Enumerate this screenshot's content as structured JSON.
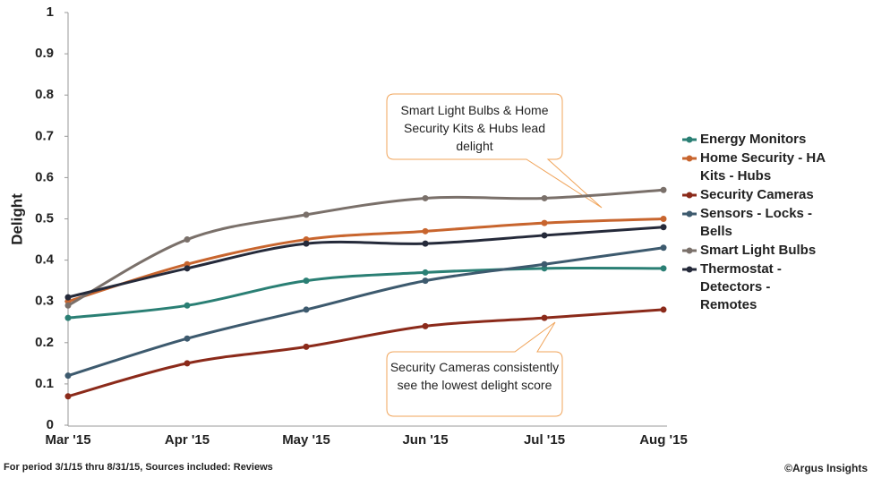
{
  "chart_data": {
    "type": "line",
    "y_label": "Delight",
    "categories": [
      "Mar '15",
      "Apr '15",
      "May '15",
      "Jun '15",
      "Jul '15",
      "Aug '15"
    ],
    "series": [
      {
        "name": "Energy Monitors",
        "color": "#2a7f74",
        "values": [
          0.26,
          0.29,
          0.35,
          0.37,
          0.38,
          0.38
        ]
      },
      {
        "name": "Home Security - HA Kits - Hubs",
        "color": "#c8652e",
        "values": [
          0.3,
          0.39,
          0.45,
          0.47,
          0.49,
          0.5
        ]
      },
      {
        "name": "Security Cameras",
        "color": "#8b2a1a",
        "values": [
          0.07,
          0.15,
          0.19,
          0.24,
          0.26,
          0.28
        ]
      },
      {
        "name": "Sensors - Locks - Bells",
        "color": "#3d5a6e",
        "values": [
          0.12,
          0.21,
          0.28,
          0.35,
          0.39,
          0.43
        ]
      },
      {
        "name": "Smart Light Bulbs",
        "color": "#7a706a",
        "values": [
          0.29,
          0.45,
          0.51,
          0.55,
          0.55,
          0.57
        ]
      },
      {
        "name": "Thermostat - Detectors - Remotes",
        "color": "#252a3a",
        "values": [
          0.31,
          0.38,
          0.44,
          0.44,
          0.46,
          0.48
        ]
      }
    ],
    "ylim": [
      0,
      1
    ],
    "yticks": [
      0,
      0.1,
      0.2,
      0.3,
      0.4,
      0.5,
      0.6,
      0.7,
      0.8,
      0.9,
      1
    ],
    "grid": false,
    "annotations": [
      "Smart Light Bulbs & Home Security Kits & Hubs lead delight",
      "Security Cameras consistently see the lowest delight score"
    ],
    "footnote": "For period 3/1/15 thru 8/31/15, Sources included: Reviews",
    "credit": "©Argus Insights"
  }
}
